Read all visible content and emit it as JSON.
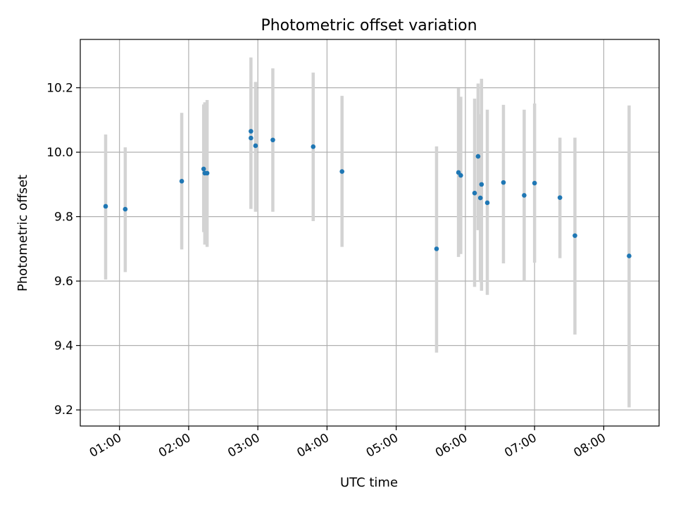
{
  "chart_data": {
    "type": "scatter",
    "title": "Photometric offset variation",
    "xlabel": "UTC time",
    "ylabel": "Photometric offset",
    "xlim": [
      "00:26",
      "08:48"
    ],
    "ylim": [
      9.15,
      10.35
    ],
    "xticks": [
      "01:00",
      "02:00",
      "03:00",
      "04:00",
      "05:00",
      "06:00",
      "07:00",
      "08:00"
    ],
    "yticks": [
      9.2,
      9.4,
      9.6,
      9.8,
      10.0,
      10.2
    ],
    "grid": true,
    "series": [
      {
        "marker_color": "#1f77b4",
        "errorbar_color": "#d3d3d3",
        "points": [
          {
            "x": "00:48",
            "y": 9.832,
            "lo": 9.605,
            "hi": 10.055
          },
          {
            "x": "01:05",
            "y": 9.823,
            "lo": 9.628,
            "hi": 10.015
          },
          {
            "x": "01:54",
            "y": 9.91,
            "lo": 9.698,
            "hi": 10.122
          },
          {
            "x": "02:13",
            "y": 9.948,
            "lo": 9.752,
            "hi": 10.148
          },
          {
            "x": "02:14",
            "y": 9.935,
            "lo": 9.713,
            "hi": 10.155
          },
          {
            "x": "02:16",
            "y": 9.935,
            "lo": 9.706,
            "hi": 10.162
          },
          {
            "x": "02:54",
            "y": 10.065,
            "lo": 9.824,
            "hi": 10.294
          },
          {
            "x": "02:54",
            "y": 10.044,
            "lo": 9.824,
            "hi": 10.218
          },
          {
            "x": "02:58",
            "y": 10.02,
            "lo": 9.815,
            "hi": 10.218
          },
          {
            "x": "03:13",
            "y": 10.038,
            "lo": 9.815,
            "hi": 10.26
          },
          {
            "x": "03:48",
            "y": 10.017,
            "lo": 9.786,
            "hi": 10.247
          },
          {
            "x": "04:13",
            "y": 9.94,
            "lo": 9.706,
            "hi": 10.175
          },
          {
            "x": "05:35",
            "y": 9.7,
            "lo": 9.378,
            "hi": 10.018
          },
          {
            "x": "05:54",
            "y": 9.937,
            "lo": 9.675,
            "hi": 10.198
          },
          {
            "x": "05:56",
            "y": 9.928,
            "lo": 9.684,
            "hi": 10.172
          },
          {
            "x": "06:08",
            "y": 9.873,
            "lo": 9.582,
            "hi": 10.166
          },
          {
            "x": "06:11",
            "y": 9.987,
            "lo": 9.758,
            "hi": 10.213
          },
          {
            "x": "06:13",
            "y": 9.858,
            "lo": 9.597,
            "hi": 10.118
          },
          {
            "x": "06:14",
            "y": 9.9,
            "lo": 9.57,
            "hi": 10.228
          },
          {
            "x": "06:19",
            "y": 9.843,
            "lo": 9.557,
            "hi": 10.132
          },
          {
            "x": "06:33",
            "y": 9.906,
            "lo": 9.655,
            "hi": 10.147
          },
          {
            "x": "06:51",
            "y": 9.866,
            "lo": 9.6,
            "hi": 10.132
          },
          {
            "x": "07:00",
            "y": 9.904,
            "lo": 9.657,
            "hi": 10.151
          },
          {
            "x": "07:22",
            "y": 9.859,
            "lo": 9.671,
            "hi": 10.045
          },
          {
            "x": "07:35",
            "y": 9.741,
            "lo": 9.434,
            "hi": 10.045
          },
          {
            "x": "08:22",
            "y": 9.678,
            "lo": 9.208,
            "hi": 10.145
          }
        ]
      }
    ]
  }
}
